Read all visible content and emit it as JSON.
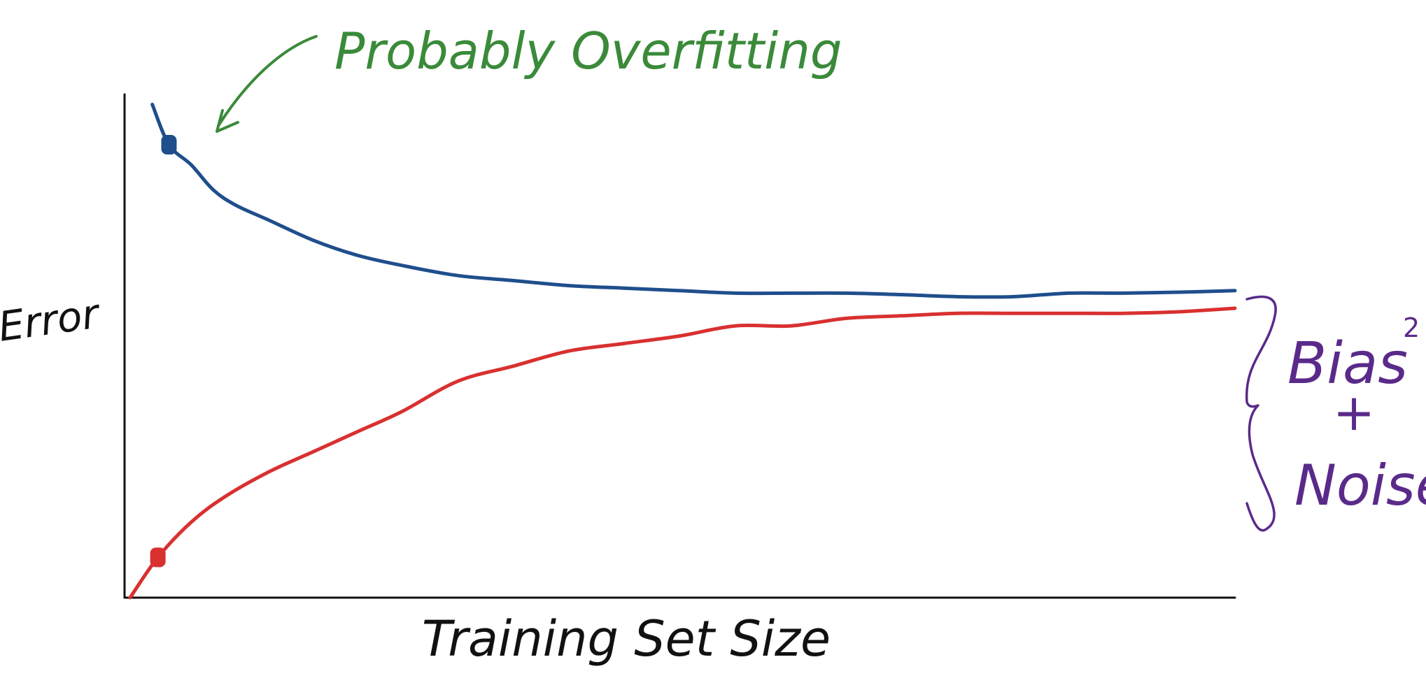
{
  "chart_data": {
    "type": "line",
    "xlabel": "Training Set Size",
    "ylabel": "Error",
    "xlim": [
      0,
      100
    ],
    "ylim": [
      0,
      100
    ],
    "grid": false,
    "series": [
      {
        "color": "#1f4e8c",
        "x": [
          2.5,
          4,
          6,
          8,
          10,
          13,
          17,
          21,
          25,
          30,
          35,
          40,
          45,
          50,
          55,
          60,
          65,
          70,
          75,
          80,
          85,
          90,
          95,
          100
        ],
        "y": [
          98,
          90,
          86,
          81,
          78,
          75,
          71,
          68,
          66,
          64,
          63,
          62,
          61.5,
          61,
          60.5,
          60.5,
          60.5,
          60.2,
          59.8,
          59.8,
          60.5,
          60.5,
          60.7,
          61
        ]
      },
      {
        "color": "#d93030",
        "x": [
          0.5,
          3,
          6,
          9,
          13,
          17,
          21,
          25,
          30,
          35,
          40,
          45,
          50,
          55,
          60,
          65,
          70,
          75,
          80,
          85,
          90,
          95,
          100
        ],
        "y": [
          0,
          8,
          15,
          20,
          25,
          29,
          33,
          37,
          43,
          46,
          49,
          50.5,
          52,
          54,
          54,
          55.5,
          56,
          56.5,
          56.5,
          56.5,
          56.5,
          56.8,
          57.5
        ]
      }
    ],
    "markers": [
      {
        "series": 0,
        "x": 4,
        "y": 90,
        "color": "#1f4e8c"
      },
      {
        "series": 1,
        "x": 3,
        "y": 8,
        "color": "#d93030"
      }
    ],
    "annotations": {
      "overfit_text": "Probably Overfitting",
      "overfit_color": "#3a8a3a",
      "bias_text": "Bias",
      "bias_sup": "2",
      "plus_text": "+",
      "noise_text": "Noise",
      "brace_color": "#5a2a8a"
    }
  }
}
